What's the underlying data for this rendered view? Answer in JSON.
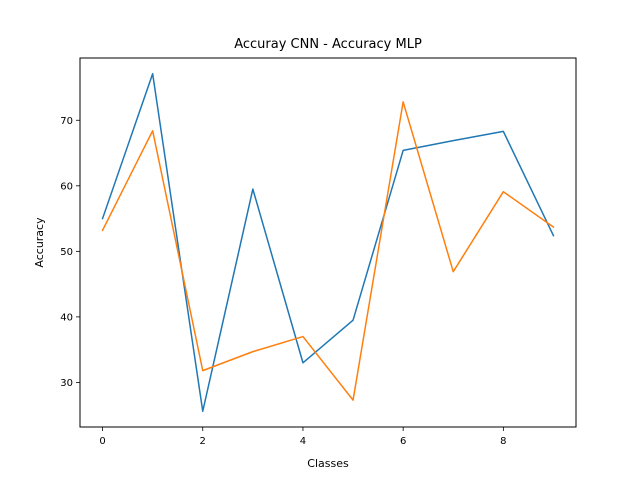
{
  "chart_data": {
    "type": "line",
    "title": "Accuray CNN - Accuracy MLP",
    "xlabel": "Classes",
    "ylabel": "Accuracy",
    "x": [
      0,
      1,
      2,
      3,
      4,
      5,
      6,
      7,
      8,
      9
    ],
    "xlim": [
      -0.45,
      9.45
    ],
    "ylim": [
      23.2,
      79.5
    ],
    "xticks": [
      0,
      2,
      4,
      6,
      8
    ],
    "yticks": [
      30,
      40,
      50,
      60,
      70
    ],
    "grid": false,
    "legend": "none",
    "series": [
      {
        "color": "#1f77b4",
        "values": [
          55.0,
          77.1,
          25.6,
          59.5,
          33.0,
          39.5,
          65.4,
          66.9,
          68.3,
          52.4
        ]
      },
      {
        "color": "#ff7f0e",
        "values": [
          53.2,
          68.4,
          31.8,
          34.7,
          37.0,
          27.3,
          72.8,
          46.9,
          59.1,
          53.7
        ]
      }
    ]
  }
}
